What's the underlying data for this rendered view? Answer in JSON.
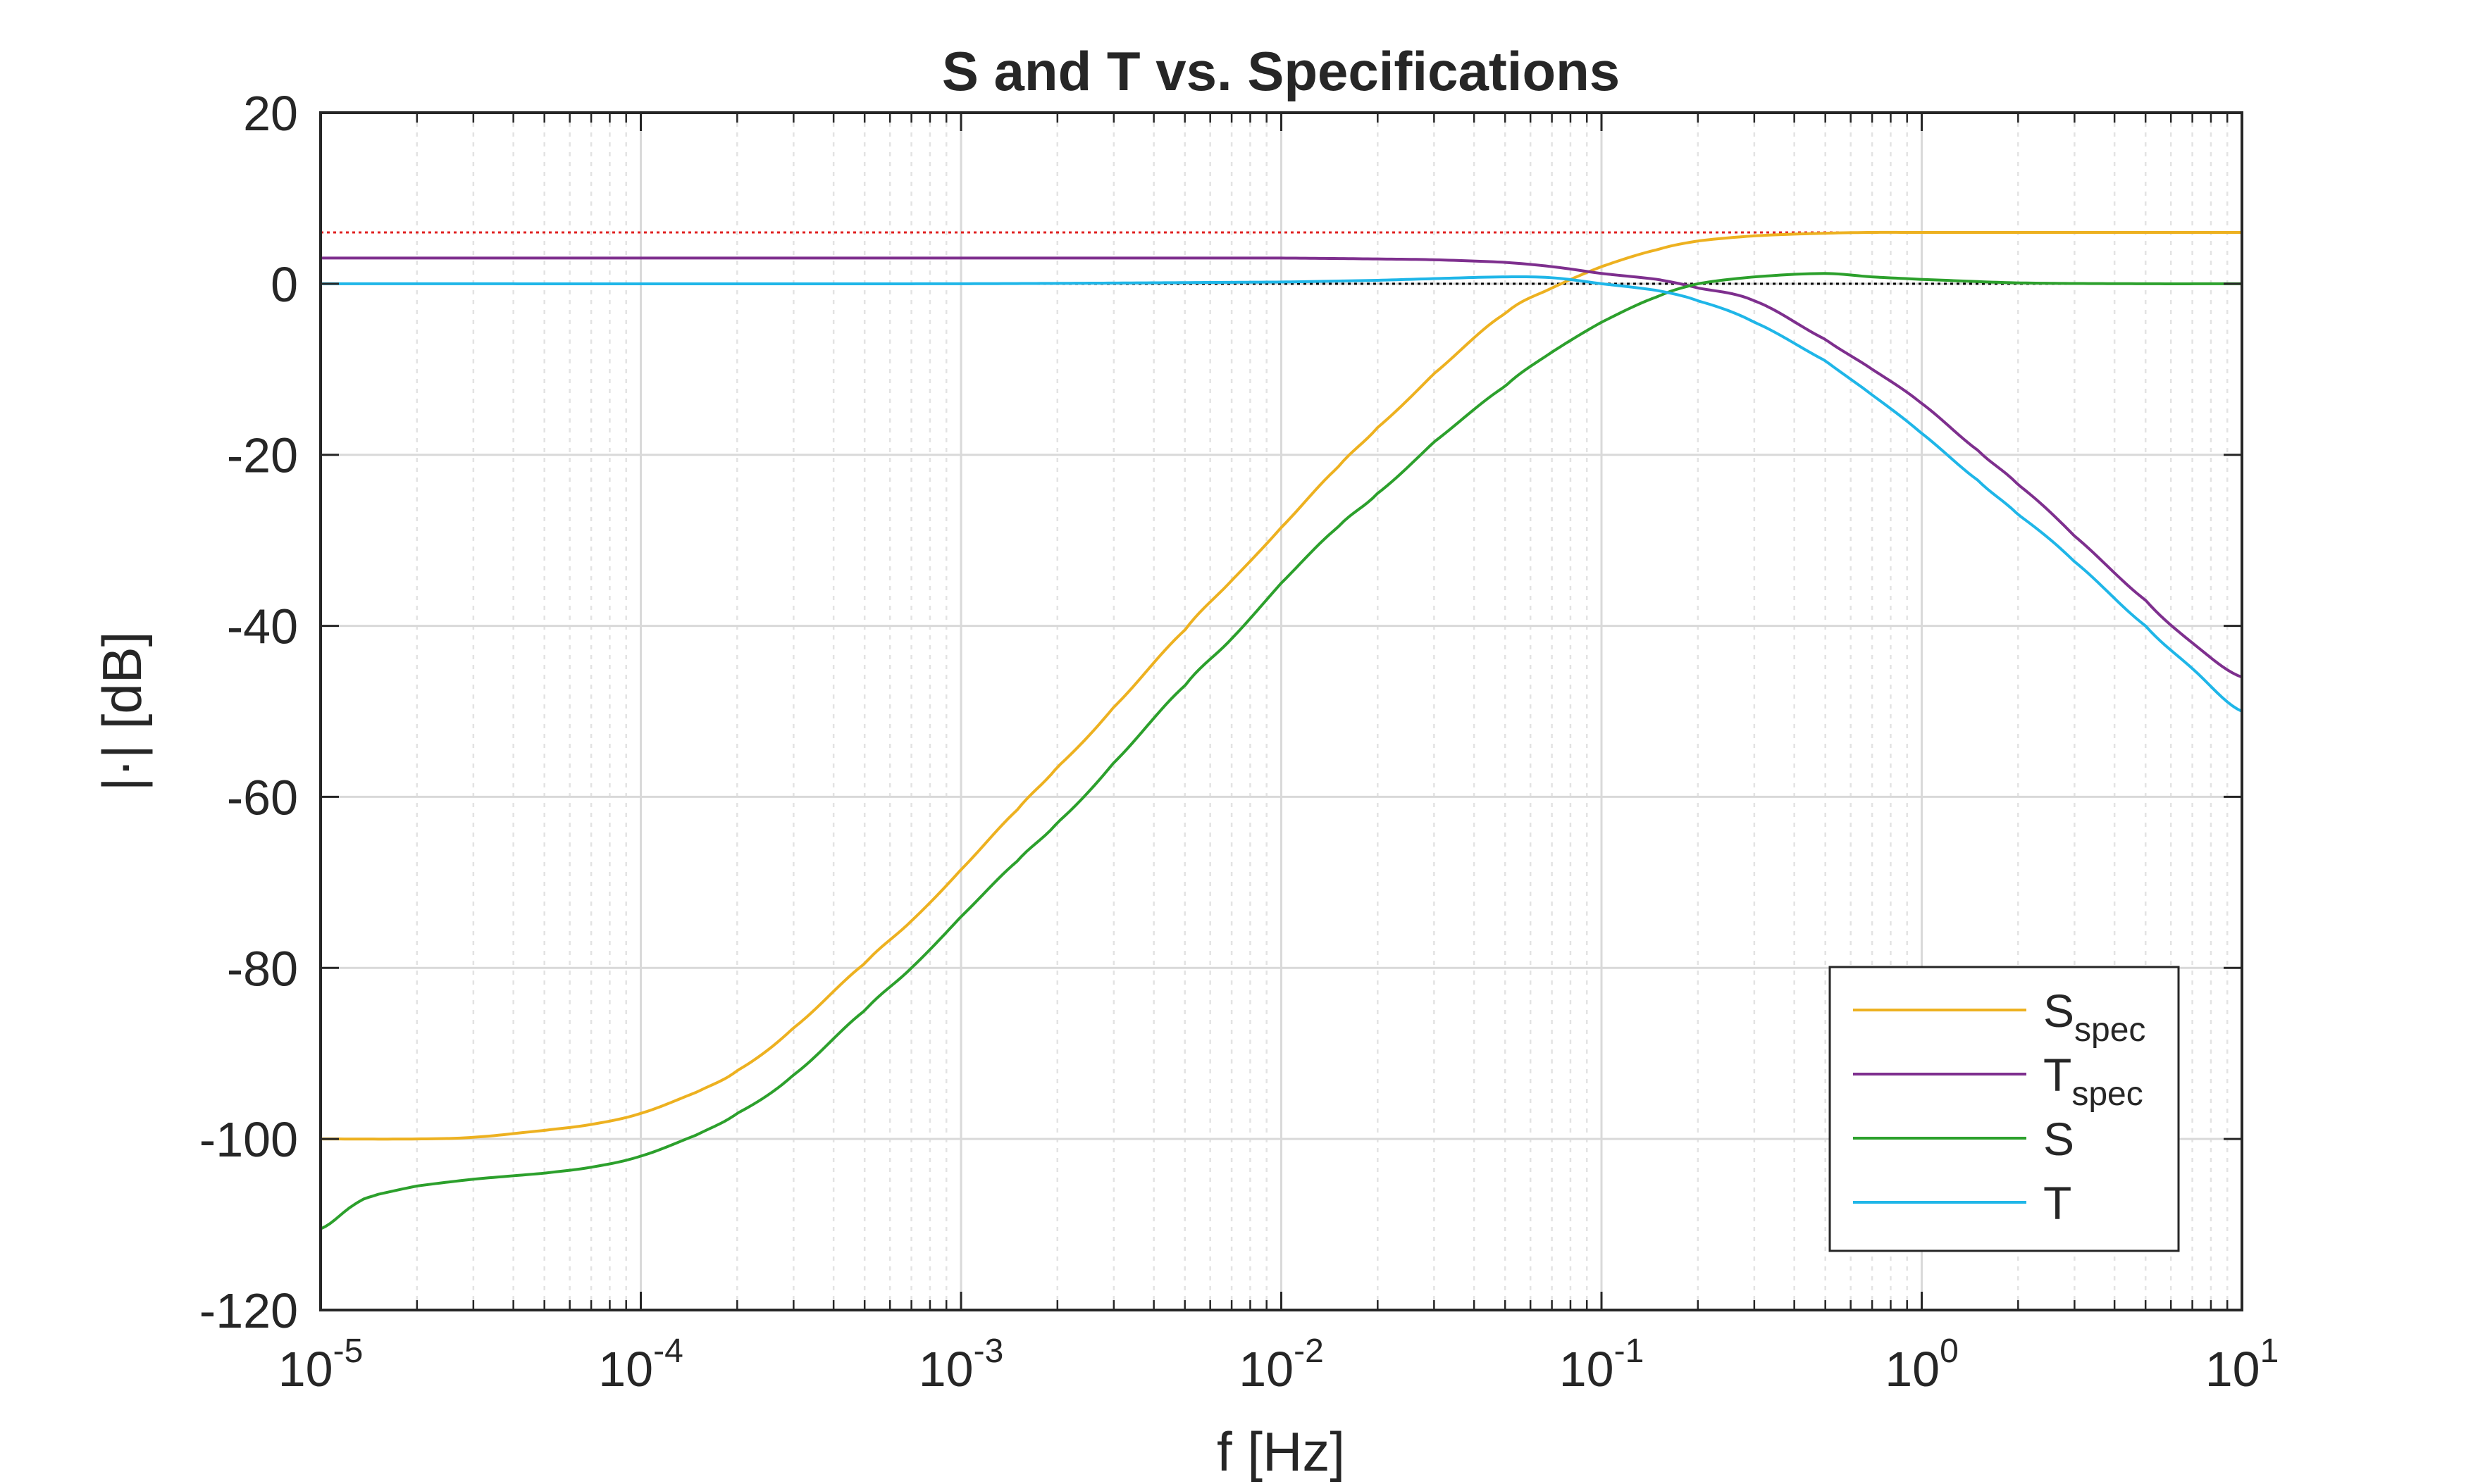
{
  "chart_data": {
    "type": "line",
    "title": "S and T vs. Specifications",
    "xlabel": "f [Hz]",
    "ylabel": "|·|  [dB]",
    "xscale": "log",
    "xlim": [
      1e-05,
      10
    ],
    "ylim": [
      -120,
      20
    ],
    "grid": true,
    "minor_grid": true,
    "legend_position": "bottom-right",
    "x_ticks": [
      {
        "base": "10",
        "exp": "-5"
      },
      {
        "base": "10",
        "exp": "-4"
      },
      {
        "base": "10",
        "exp": "-3"
      },
      {
        "base": "10",
        "exp": "-2"
      },
      {
        "base": "10",
        "exp": "-1"
      },
      {
        "base": "10",
        "exp": "0"
      },
      {
        "base": "10",
        "exp": "1"
      }
    ],
    "y_ticks": [
      "20",
      "0",
      "-20",
      "-40",
      "-60",
      "-80",
      "-100",
      "-120"
    ],
    "series": [
      {
        "name": "S",
        "name_sub": "spec",
        "color": "#EDB120",
        "x": [
          1e-05,
          2e-05,
          3e-05,
          5e-05,
          7e-05,
          0.0001,
          0.00015,
          0.0002,
          0.0003,
          0.0005,
          0.0007,
          0.001,
          0.0015,
          0.002,
          0.003,
          0.005,
          0.007,
          0.01,
          0.015,
          0.02,
          0.03,
          0.05,
          0.07,
          0.1,
          0.15,
          0.2,
          0.3,
          0.5,
          0.7,
          1,
          2,
          5,
          10
        ],
        "y": [
          -100,
          -100,
          -99.8,
          -99,
          -98.3,
          -97,
          -94.5,
          -92,
          -87,
          -79.5,
          -74.5,
          -68.5,
          -61.5,
          -56.5,
          -49.5,
          -40.5,
          -34.7,
          -28.5,
          -21.5,
          -16.8,
          -10.5,
          -3.5,
          -0.5,
          2,
          4,
          5,
          5.6,
          5.9,
          6,
          6,
          6,
          6,
          6
        ]
      },
      {
        "name": "T",
        "name_sub": "spec",
        "color": "#7E2F8E",
        "x": [
          1e-05,
          0.0001,
          0.001,
          0.01,
          0.02,
          0.03,
          0.05,
          0.07,
          0.1,
          0.15,
          0.2,
          0.3,
          0.5,
          0.7,
          1,
          1.5,
          2,
          3,
          5,
          7,
          10
        ],
        "y": [
          3,
          3,
          3,
          3,
          2.9,
          2.8,
          2.5,
          2,
          1.2,
          0.5,
          -0.5,
          -2,
          -6.5,
          -10,
          -14,
          -19.5,
          -23.5,
          -29.5,
          -37,
          -42,
          -46
        ]
      },
      {
        "name": "S",
        "name_sub": "",
        "color": "#2CA02C",
        "x": [
          1e-05,
          1.3e-05,
          1.5e-05,
          2e-05,
          3e-05,
          5e-05,
          7e-05,
          0.0001,
          0.00015,
          0.0002,
          0.0003,
          0.0005,
          0.0007,
          0.001,
          0.0015,
          0.002,
          0.003,
          0.005,
          0.007,
          0.01,
          0.015,
          0.02,
          0.03,
          0.05,
          0.07,
          0.1,
          0.15,
          0.2,
          0.3,
          0.5,
          0.7,
          1,
          2,
          5,
          10
        ],
        "y": [
          -110.5,
          -107.5,
          -106.5,
          -105.5,
          -104.7,
          -104,
          -103.3,
          -102,
          -99.5,
          -97,
          -92.5,
          -85,
          -80,
          -74,
          -67.5,
          -63,
          -56,
          -47,
          -41.5,
          -35,
          -28.5,
          -24.5,
          -18.5,
          -12,
          -8,
          -4.5,
          -1.5,
          0,
          0.8,
          1.2,
          0.8,
          0.5,
          0.1,
          0,
          0
        ]
      },
      {
        "name": "T",
        "name_sub": "",
        "color": "#1FB6E8",
        "x": [
          1e-05,
          0.001,
          0.01,
          0.02,
          0.03,
          0.05,
          0.07,
          0.1,
          0.15,
          0.2,
          0.3,
          0.5,
          0.7,
          1,
          1.5,
          2,
          3,
          5,
          7,
          10
        ],
        "y": [
          0,
          0,
          0.2,
          0.4,
          0.6,
          0.8,
          0.7,
          0,
          -0.8,
          -2,
          -4.5,
          -9,
          -13,
          -17.5,
          -23,
          -27,
          -32.5,
          -40,
          -45,
          -50
        ]
      }
    ],
    "reference_lines": [
      {
        "y": 6,
        "color": "#E02020",
        "style": "dotted"
      },
      {
        "y": 0,
        "color": "#000000",
        "style": "dotted"
      }
    ]
  }
}
